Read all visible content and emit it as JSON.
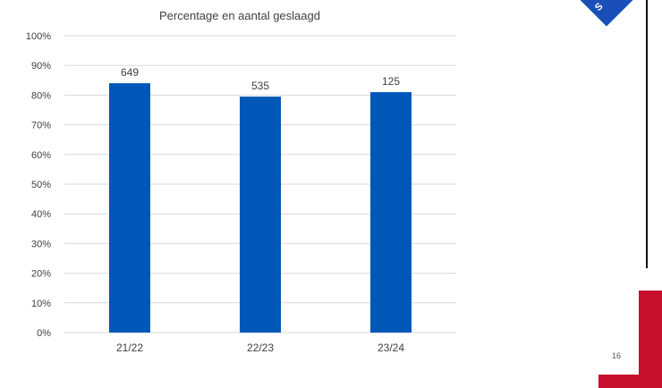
{
  "chart_data": {
    "type": "bar",
    "title": "Percentage en aantal geslaagd",
    "categories": [
      "21/22",
      "22/23",
      "23/24"
    ],
    "values": [
      84,
      79.5,
      81
    ],
    "data_labels": [
      "649",
      "535",
      "125"
    ],
    "ylim": [
      0,
      100
    ],
    "yticks": [
      "0%",
      "10%",
      "20%",
      "30%",
      "40%",
      "50%",
      "60%",
      "70%",
      "80%",
      "90%",
      "100%"
    ],
    "xlabel": "",
    "ylabel": "",
    "grid": true,
    "bar_color": "#0057b8"
  },
  "page_number": "16",
  "logo_text": "S",
  "colors": {
    "accent_red": "#c8102e",
    "logo_blue": "#1a4fb8"
  }
}
